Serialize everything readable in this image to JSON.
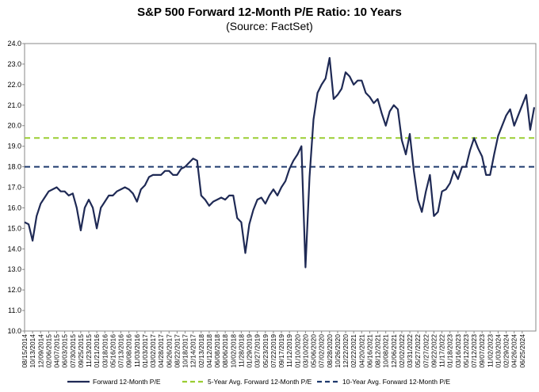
{
  "chart_data": {
    "type": "line",
    "title": "S&P 500 Forward 12-Month P/E Ratio: 10 Years",
    "subtitle": "(Source: FactSet)",
    "categories": [
      "08/15/2014",
      null,
      "10/13/2014",
      null,
      "12/09/2014",
      null,
      "02/06/2015",
      null,
      "04/07/2015",
      null,
      "06/03/2015",
      null,
      "07/30/2015",
      null,
      "09/25/2015",
      null,
      "11/23/2015",
      null,
      "01/21/2016",
      null,
      "03/18/2016",
      null,
      "05/16/2016",
      null,
      "07/13/2016",
      null,
      "09/08/2016",
      null,
      "11/03/2016",
      null,
      "01/03/2017",
      null,
      "03/02/2017",
      null,
      "04/28/2017",
      null,
      "06/26/2017",
      null,
      "08/22/2017",
      null,
      "10/18/2017",
      null,
      "12/14/2017",
      null,
      "02/13/2018",
      null,
      "04/12/2018",
      null,
      "06/08/2018",
      null,
      "08/06/2018",
      null,
      "10/02/2018",
      null,
      "11/28/2018",
      null,
      "01/29/2019",
      null,
      "03/27/2019",
      null,
      "05/23/2019",
      null,
      "07/22/2019",
      null,
      "09/17/2019",
      null,
      "11/12/2019",
      null,
      "01/10/2020",
      null,
      "03/10/2020",
      null,
      "05/06/2020",
      null,
      "07/02/2020",
      null,
      "08/28/2020",
      null,
      "10/26/2020",
      null,
      "12/22/2020",
      null,
      "02/22/2021",
      null,
      "04/20/2021",
      null,
      "06/16/2021",
      null,
      "08/12/2021",
      null,
      "10/08/2021",
      null,
      "12/06/2021",
      null,
      "02/02/2022",
      null,
      "03/31/2022",
      null,
      "05/27/2022",
      null,
      "07/27/2022",
      null,
      "09/22/2022",
      null,
      "11/17/2022",
      null,
      "01/18/2023",
      null,
      "03/16/2023",
      null,
      "05/12/2023",
      null,
      "07/12/2023",
      null,
      "09/07/2023",
      null,
      "11/02/2023",
      null,
      "01/03/2024",
      null,
      "02/29/2024",
      null,
      "04/26/2024",
      null,
      "06/25/2024",
      null,
      null,
      null
    ],
    "series": [
      {
        "name": "Forward 12-Month P/E",
        "color": "#1f2a55",
        "values": [
          15.3,
          15.2,
          14.4,
          15.6,
          16.2,
          16.5,
          16.8,
          16.9,
          17.0,
          16.8,
          16.8,
          16.6,
          16.7,
          16.0,
          14.9,
          16.0,
          16.4,
          16.0,
          15.0,
          16.0,
          16.3,
          16.6,
          16.6,
          16.8,
          16.9,
          17.0,
          16.9,
          16.7,
          16.3,
          16.9,
          17.1,
          17.5,
          17.6,
          17.6,
          17.6,
          17.8,
          17.8,
          17.6,
          17.6,
          17.9,
          18.0,
          18.2,
          18.4,
          18.3,
          16.6,
          16.4,
          16.1,
          16.3,
          16.4,
          16.5,
          16.4,
          16.6,
          16.6,
          15.5,
          15.3,
          13.8,
          15.2,
          15.9,
          16.4,
          16.5,
          16.2,
          16.6,
          16.9,
          16.6,
          17.0,
          17.3,
          17.9,
          18.3,
          18.6,
          19.0,
          13.1,
          17.5,
          20.3,
          21.6,
          22.0,
          22.3,
          23.3,
          21.3,
          21.5,
          21.8,
          22.6,
          22.4,
          22.0,
          22.2,
          22.2,
          21.6,
          21.4,
          21.1,
          21.3,
          20.6,
          20.0,
          20.7,
          21.0,
          20.8,
          19.3,
          18.6,
          19.6,
          17.8,
          16.4,
          15.8,
          16.8,
          17.6,
          15.6,
          15.8,
          16.8,
          16.9,
          17.2,
          17.8,
          17.4,
          18.0,
          18.0,
          18.8,
          19.4,
          18.9,
          18.5,
          17.6,
          17.6,
          18.6,
          19.5,
          20.0,
          20.5,
          20.8,
          20.0,
          20.5,
          21.0,
          21.5,
          19.8,
          20.9
        ]
      }
    ],
    "reference_lines": [
      {
        "name": "5-Year Avg. Forward 12-Month P/E",
        "value": 19.4,
        "color": "#9acd32"
      },
      {
        "name": "10-Year Avg. Forward 12-Month P/E",
        "value": 18.0,
        "color": "#1f3a6e"
      }
    ],
    "ylim": [
      10,
      24
    ],
    "yticks": [
      {
        "value": 10,
        "label": "10.0"
      },
      {
        "value": 11,
        "label": "11.0"
      },
      {
        "value": 12,
        "label": "12.0"
      },
      {
        "value": 13,
        "label": "13.0"
      },
      {
        "value": 14,
        "label": "14.0"
      },
      {
        "value": 15,
        "label": "15.0"
      },
      {
        "value": 16,
        "label": "16.0"
      },
      {
        "value": 17,
        "label": "17.0"
      },
      {
        "value": 18,
        "label": "18.0"
      },
      {
        "value": 19,
        "label": "19.0"
      },
      {
        "value": 20,
        "label": "20.0"
      },
      {
        "value": 21,
        "label": "21.0"
      },
      {
        "value": 22,
        "label": "22.0"
      },
      {
        "value": 23,
        "label": "23.0"
      },
      {
        "value": 24,
        "label": "24.0"
      }
    ],
    "grid": false
  }
}
